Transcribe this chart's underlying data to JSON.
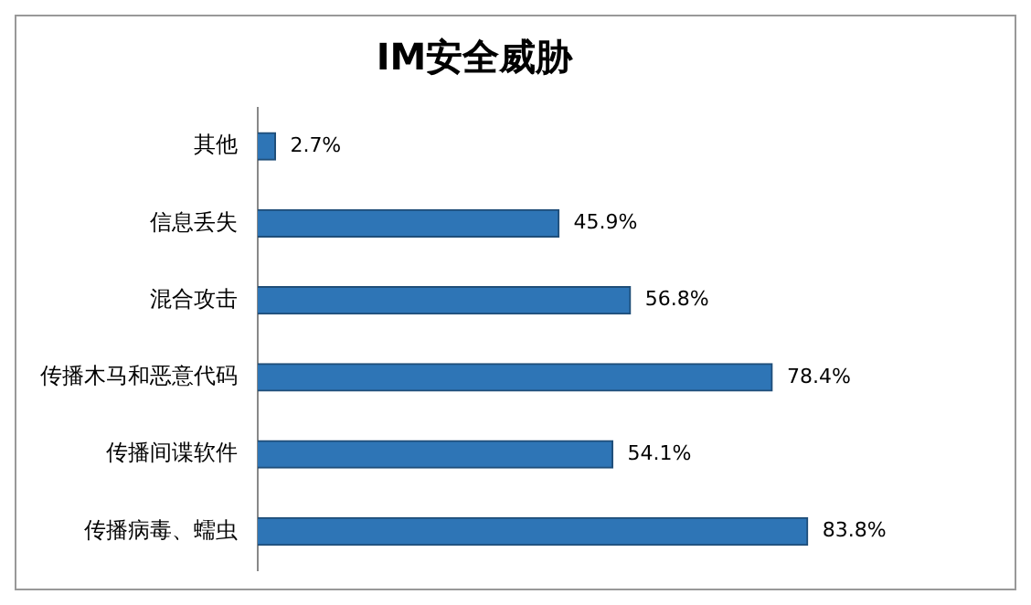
{
  "chart_data": {
    "type": "bar",
    "title": "IM安全威胁",
    "orientation": "horizontal",
    "categories": [
      "其他",
      "信息丢失",
      "混合攻击",
      "传播木马和恶意代码",
      "传播间谍软件",
      "传播病毒、蠕虫"
    ],
    "values": [
      2.7,
      45.9,
      56.8,
      78.4,
      54.1,
      83.8
    ],
    "value_labels": [
      "2.7%",
      "45.9%",
      "56.8%",
      "78.4%",
      "54.1%",
      "83.8%"
    ],
    "color": "#2e75b6",
    "legend": false
  }
}
